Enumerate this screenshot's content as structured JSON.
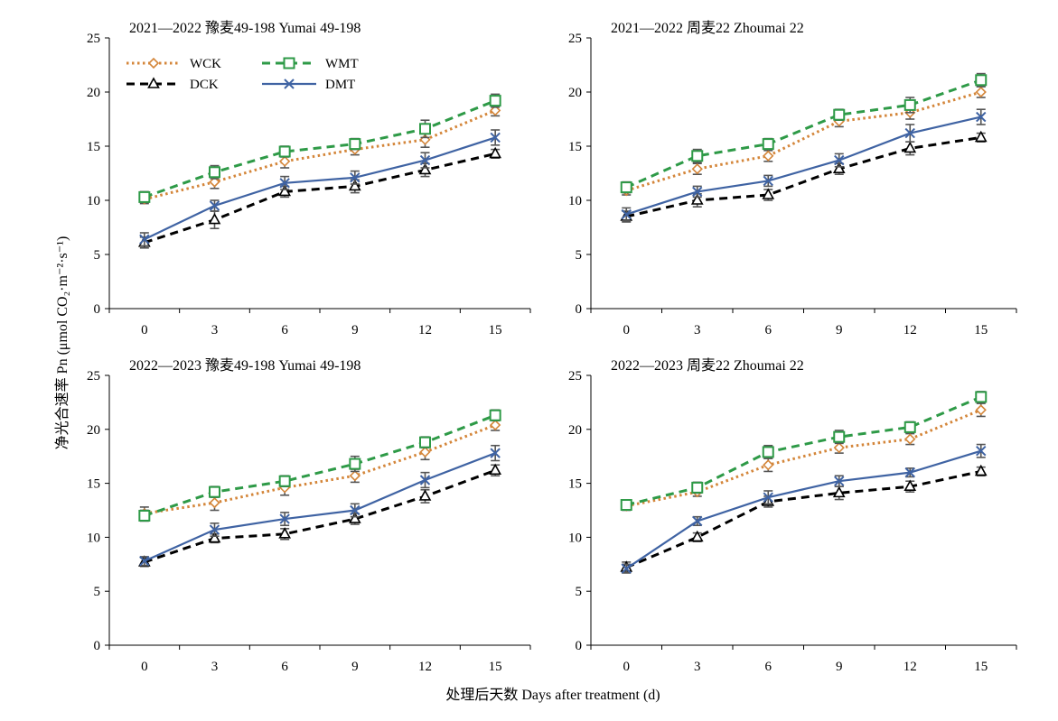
{
  "figure": {
    "ylabel": "净光合速率 Pn (μmol CO₂·m⁻²·s⁻¹)",
    "xlabel": "处理后天数 Days after treatment (d)"
  },
  "legend": [
    "WCK",
    "WMT",
    "DCK",
    "DMT"
  ],
  "series_style": {
    "WCK": {
      "color": "#d4863a",
      "dash": "dotted",
      "marker": "diamond"
    },
    "WMT": {
      "color": "#2e9a47",
      "dash": "dashed",
      "marker": "square"
    },
    "DCK": {
      "color": "#000000",
      "dash": "dashed",
      "marker": "triangle"
    },
    "DMT": {
      "color": "#3f63a3",
      "dash": "solid",
      "marker": "x"
    }
  },
  "chart_data": [
    {
      "type": "line",
      "title": "2021—2022  豫麦49-198 Yumai 49-198",
      "xlabel": "",
      "ylabel": "",
      "categories": [
        "0",
        "3",
        "6",
        "9",
        "12",
        "15"
      ],
      "ylim": [
        0,
        25
      ],
      "yticks": [
        0,
        5,
        10,
        15,
        20,
        25
      ],
      "series": [
        {
          "name": "WCK",
          "values": [
            10.1,
            11.7,
            13.6,
            14.7,
            15.6,
            18.3
          ],
          "err": [
            0.4,
            0.6,
            0.6,
            0.5,
            0.7,
            0.5
          ]
        },
        {
          "name": "WMT",
          "values": [
            10.3,
            12.6,
            14.5,
            15.2,
            16.6,
            19.2
          ],
          "err": [
            0.5,
            0.6,
            0.5,
            0.5,
            0.8,
            0.6
          ]
        },
        {
          "name": "DCK",
          "values": [
            6.1,
            8.2,
            10.8,
            11.3,
            12.8,
            14.3
          ],
          "err": [
            0.5,
            0.8,
            0.5,
            0.6,
            0.6,
            0.4
          ]
        },
        {
          "name": "DMT",
          "values": [
            6.4,
            9.5,
            11.6,
            12.1,
            13.7,
            15.8
          ],
          "err": [
            0.6,
            0.5,
            0.6,
            0.6,
            0.7,
            0.7
          ]
        }
      ]
    },
    {
      "type": "line",
      "title": "2021—2022  周麦22 Zhoumai 22",
      "xlabel": "",
      "ylabel": "",
      "categories": [
        "0",
        "3",
        "6",
        "9",
        "12",
        "15"
      ],
      "ylim": [
        0,
        25
      ],
      "yticks": [
        0,
        5,
        10,
        15,
        20,
        25
      ],
      "series": [
        {
          "name": "WCK",
          "values": [
            10.9,
            12.9,
            14.1,
            17.3,
            18.1,
            20.0
          ],
          "err": [
            0.4,
            0.5,
            0.5,
            0.5,
            0.6,
            0.5
          ]
        },
        {
          "name": "WMT",
          "values": [
            11.2,
            14.1,
            15.2,
            17.9,
            18.8,
            21.1
          ],
          "err": [
            0.5,
            0.6,
            0.5,
            0.5,
            0.7,
            0.6
          ]
        },
        {
          "name": "DCK",
          "values": [
            8.5,
            10.0,
            10.5,
            12.9,
            14.8,
            15.8
          ],
          "err": [
            0.5,
            0.6,
            0.5,
            0.5,
            0.6,
            0.4
          ]
        },
        {
          "name": "DMT",
          "values": [
            8.7,
            10.8,
            11.8,
            13.7,
            16.2,
            17.7
          ],
          "err": [
            0.6,
            0.5,
            0.5,
            0.6,
            0.8,
            0.7
          ]
        }
      ]
    },
    {
      "type": "line",
      "title": "2022—2023  豫麦49-198 Yumai 49-198",
      "xlabel": "",
      "ylabel": "",
      "categories": [
        "0",
        "3",
        "6",
        "9",
        "12",
        "15"
      ],
      "ylim": [
        0,
        25
      ],
      "yticks": [
        0,
        5,
        10,
        15,
        20,
        25
      ],
      "series": [
        {
          "name": "WCK",
          "values": [
            12.2,
            13.2,
            14.6,
            15.7,
            17.9,
            20.4
          ],
          "err": [
            0.6,
            0.7,
            0.7,
            0.6,
            0.7,
            0.5
          ]
        },
        {
          "name": "WMT",
          "values": [
            12.0,
            14.2,
            15.2,
            16.8,
            18.8,
            21.3
          ],
          "err": [
            0.5,
            0.5,
            0.5,
            0.7,
            0.5,
            0.5
          ]
        },
        {
          "name": "DCK",
          "values": [
            7.7,
            9.9,
            10.3,
            11.7,
            13.8,
            16.2
          ],
          "err": [
            0.4,
            0.4,
            0.5,
            0.5,
            0.6,
            0.5
          ]
        },
        {
          "name": "DMT",
          "values": [
            7.8,
            10.7,
            11.7,
            12.5,
            15.3,
            17.8
          ],
          "err": [
            0.4,
            0.6,
            0.6,
            0.6,
            0.7,
            0.7
          ]
        }
      ]
    },
    {
      "type": "line",
      "title": "2022—2023  周麦22 Zhoumai 22",
      "xlabel": "",
      "ylabel": "",
      "categories": [
        "0",
        "3",
        "6",
        "9",
        "12",
        "15"
      ],
      "ylim": [
        0,
        25
      ],
      "yticks": [
        0,
        5,
        10,
        15,
        20,
        25
      ],
      "series": [
        {
          "name": "WCK",
          "values": [
            12.9,
            14.2,
            16.7,
            18.3,
            19.1,
            21.8
          ],
          "err": [
            0.4,
            0.4,
            0.6,
            0.5,
            0.5,
            0.6
          ]
        },
        {
          "name": "WMT",
          "values": [
            13.0,
            14.6,
            17.9,
            19.3,
            20.2,
            23.0
          ],
          "err": [
            0.4,
            0.5,
            0.6,
            0.6,
            0.5,
            0.5
          ]
        },
        {
          "name": "DCK",
          "values": [
            7.2,
            10.0,
            13.3,
            14.1,
            14.7,
            16.1
          ],
          "err": [
            0.5,
            0.4,
            0.5,
            0.6,
            0.5,
            0.4
          ]
        },
        {
          "name": "DMT",
          "values": [
            7.1,
            11.5,
            13.7,
            15.2,
            16.0,
            18.0
          ],
          "err": [
            0.4,
            0.4,
            0.6,
            0.5,
            0.4,
            0.6
          ]
        }
      ]
    }
  ]
}
